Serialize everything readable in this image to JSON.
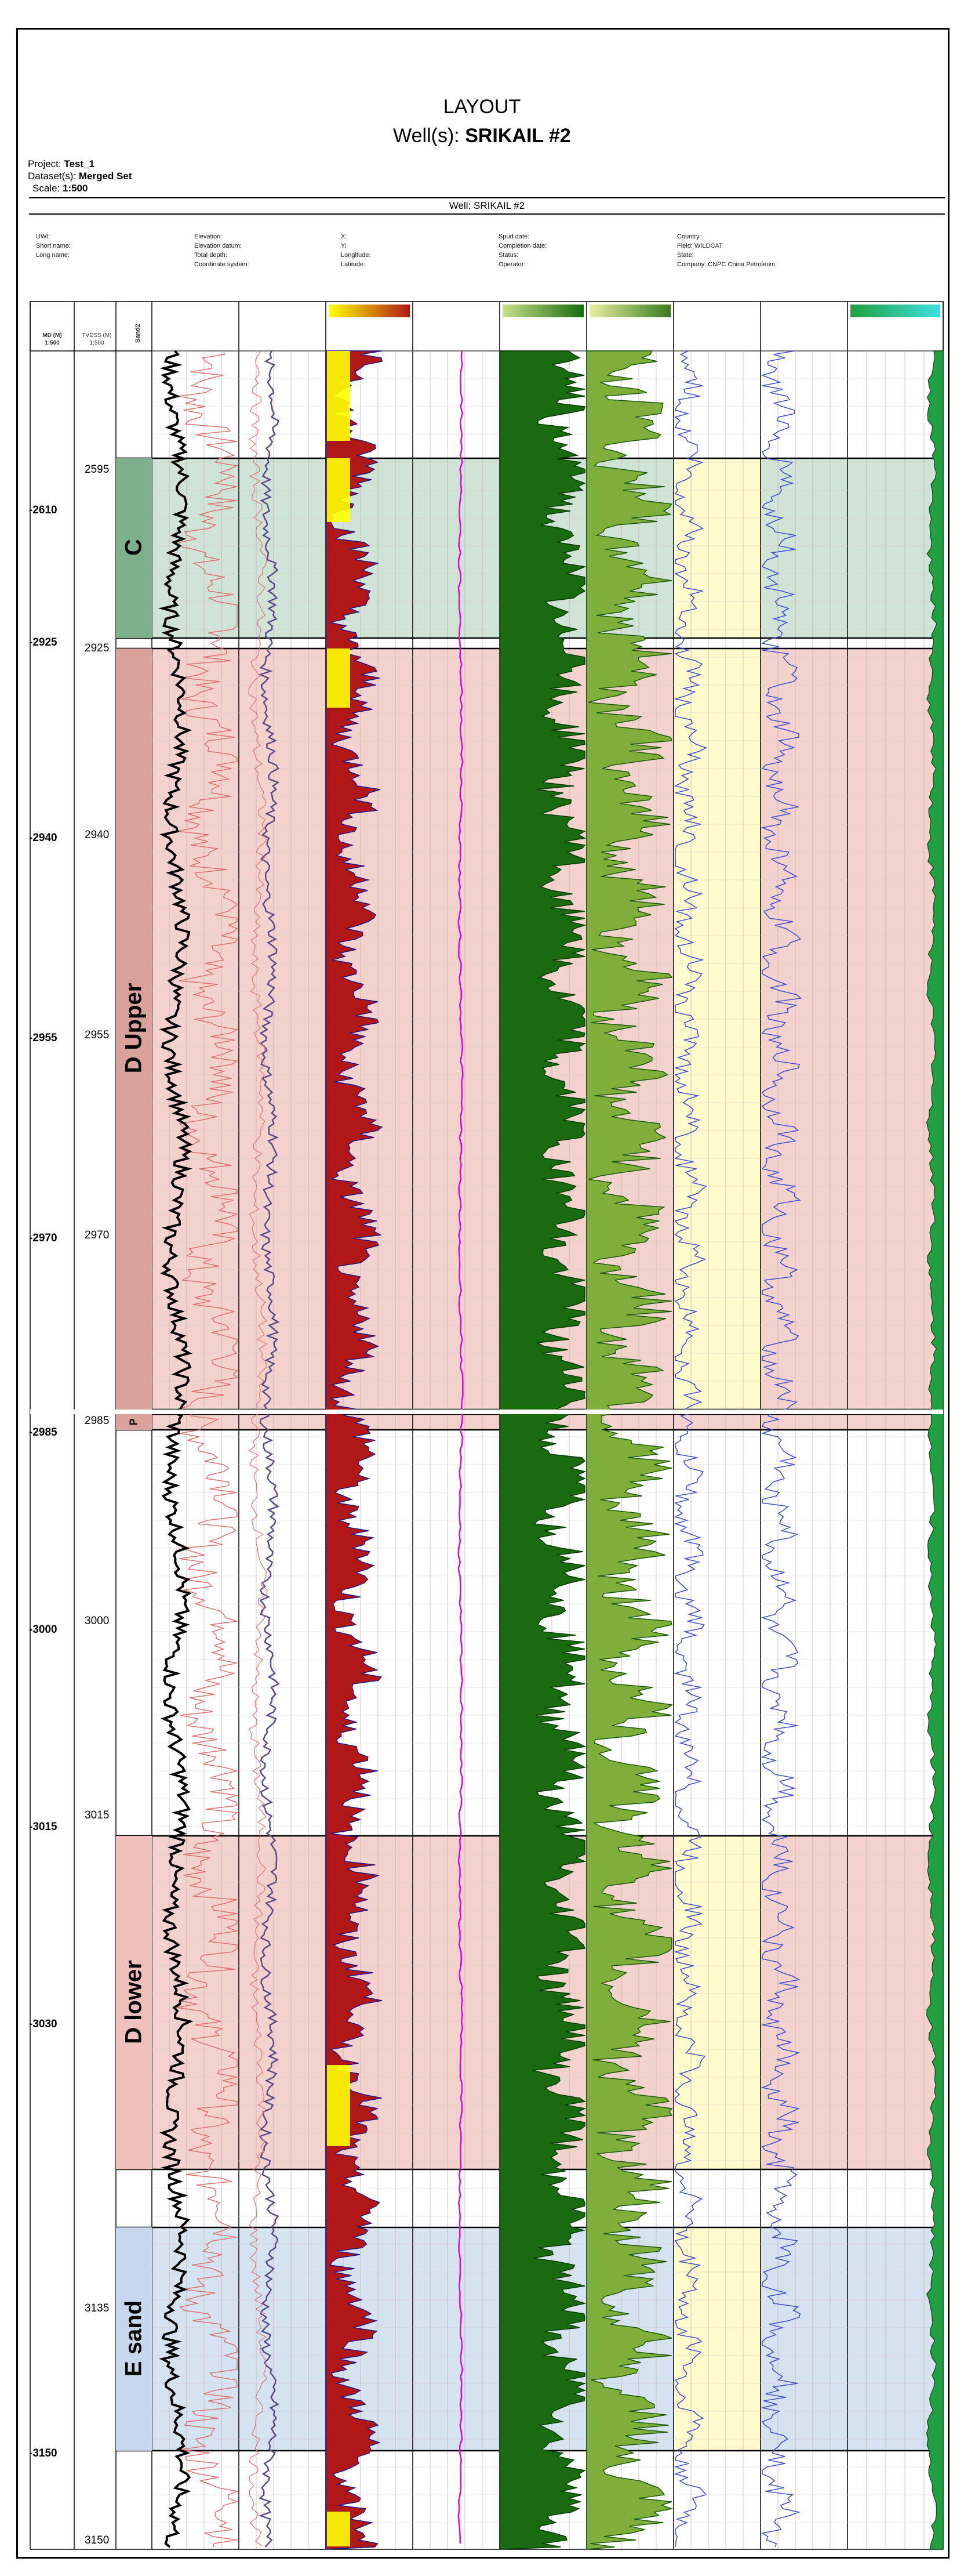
{
  "layout_title": "LAYOUT",
  "wells_prefix": "Well(s):",
  "well_name": "SRIKAIL #2",
  "project_label": "Project:",
  "project_value": "Test_1",
  "dataset_label": "Dataset(s):",
  "dataset_value": "Merged Set",
  "scale_label": "Scale:",
  "scale_value": "1:500",
  "well_bar": "Well: SRIKAIL #2",
  "meta_col1": [
    "UWI:",
    "Short name:",
    "Long name:"
  ],
  "meta_col2": [
    "Elevation:",
    "Elevation datum:",
    "Total depth:",
    "Coordinate system:"
  ],
  "meta_col3": [
    "X:",
    "Y:",
    "Longitude:",
    "Latitude:"
  ],
  "meta_col4": [
    "Spud date:",
    "Completion date:",
    "Status:",
    "Operator:"
  ],
  "meta_col5": [
    "Country:",
    "Field: WILDCAT",
    "State:",
    "Company: CNPC China Petroleum"
  ],
  "track_headers": {
    "md": "MD (M) 1:500",
    "tvdss": "TVDSS (M) 1:500",
    "zone": "Sand2"
  },
  "zones": [
    {
      "name": "C",
      "color": "#cfe3d6"
    },
    {
      "name": "D Upper",
      "color": "#f3d2cd"
    },
    {
      "name": "P",
      "color": "#f3d2cd"
    },
    {
      "name": "D lower",
      "color": "#f3d2cd"
    },
    {
      "name": "E sand",
      "color": "#d5e2ef"
    }
  ],
  "md_ticks": [
    "-2610",
    "-2925",
    "-2940",
    "-2955",
    "-2970",
    "-2985",
    "-3000",
    "-3015",
    "-3030",
    "-3150"
  ],
  "tvdss_ticks": [
    "2595",
    "2925",
    "2940",
    "2955",
    "2970",
    "2985",
    "3000",
    "3015",
    "3135",
    "3150"
  ],
  "colors": {
    "gr": "#000000",
    "res": "#e07070",
    "cali": "#5a4a8a",
    "sp_fill": "#b01818",
    "sand_fill": "#ffff00",
    "density": "#e000e0",
    "vsh": "#1a6a10",
    "phi": "#4050d0",
    "sw": "#20a040"
  }
}
